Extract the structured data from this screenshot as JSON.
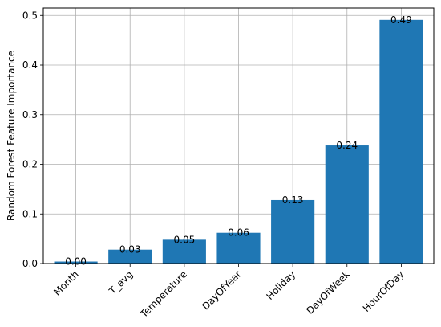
{
  "chart_data": {
    "type": "bar",
    "categories": [
      "Month",
      "T_avg",
      "Temperature",
      "DayOfYear",
      "Holiday",
      "DayOfWeek",
      "HourOfDay"
    ],
    "values": [
      0.004,
      0.028,
      0.048,
      0.062,
      0.128,
      0.238,
      0.491
    ],
    "data_labels": [
      "0.00",
      "0.03",
      "0.05",
      "0.06",
      "0.13",
      "0.24",
      "0.49"
    ],
    "title": "",
    "xlabel": "",
    "ylabel": "Random Forest Feature Importance",
    "ylim": [
      0,
      0.515
    ],
    "yticks": [
      0.0,
      0.1,
      0.2,
      0.3,
      0.4,
      0.5
    ],
    "ytick_labels": [
      "0.0",
      "0.1",
      "0.2",
      "0.3",
      "0.4",
      "0.5"
    ],
    "grid": true,
    "bar_color": "#1f77b4"
  }
}
